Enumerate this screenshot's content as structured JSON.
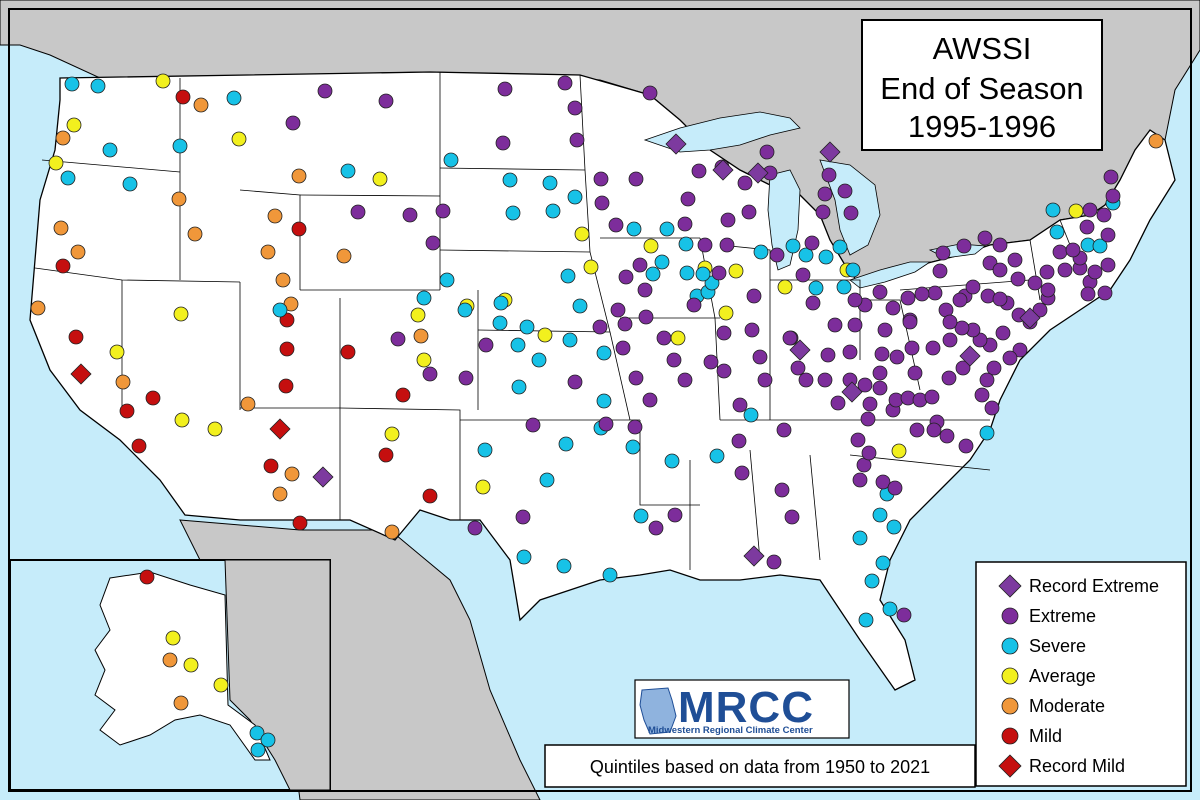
{
  "title": {
    "line1": "AWSSI",
    "line2": "End of Season",
    "line3": "1995-1996"
  },
  "note": "Quintiles based on data from 1950 to 2021",
  "logo": {
    "name": "MRCC",
    "subtitle": "Midwestern Regional Climate Center"
  },
  "colors": {
    "ocean": "#c6ecfa",
    "land_foreign": "#c8c8c8",
    "land_us": "#ffffff",
    "record_extreme": "#7d3a9f",
    "extreme": "#7d2d9b",
    "severe": "#17c2e7",
    "average": "#f2f01e",
    "moderate": "#f0973a",
    "mild": "#c50f0f",
    "record_mild": "#c50f0f"
  },
  "legend": [
    {
      "key": "record_extreme",
      "label": "Record Extreme",
      "shape": "diamond"
    },
    {
      "key": "extreme",
      "label": "Extreme",
      "shape": "circle"
    },
    {
      "key": "severe",
      "label": "Severe",
      "shape": "circle"
    },
    {
      "key": "average",
      "label": "Average",
      "shape": "circle"
    },
    {
      "key": "moderate",
      "label": "Moderate",
      "shape": "circle"
    },
    {
      "key": "mild",
      "label": "Mild",
      "shape": "circle"
    },
    {
      "key": "record_mild",
      "label": "Record Mild",
      "shape": "diamond"
    }
  ]
}
